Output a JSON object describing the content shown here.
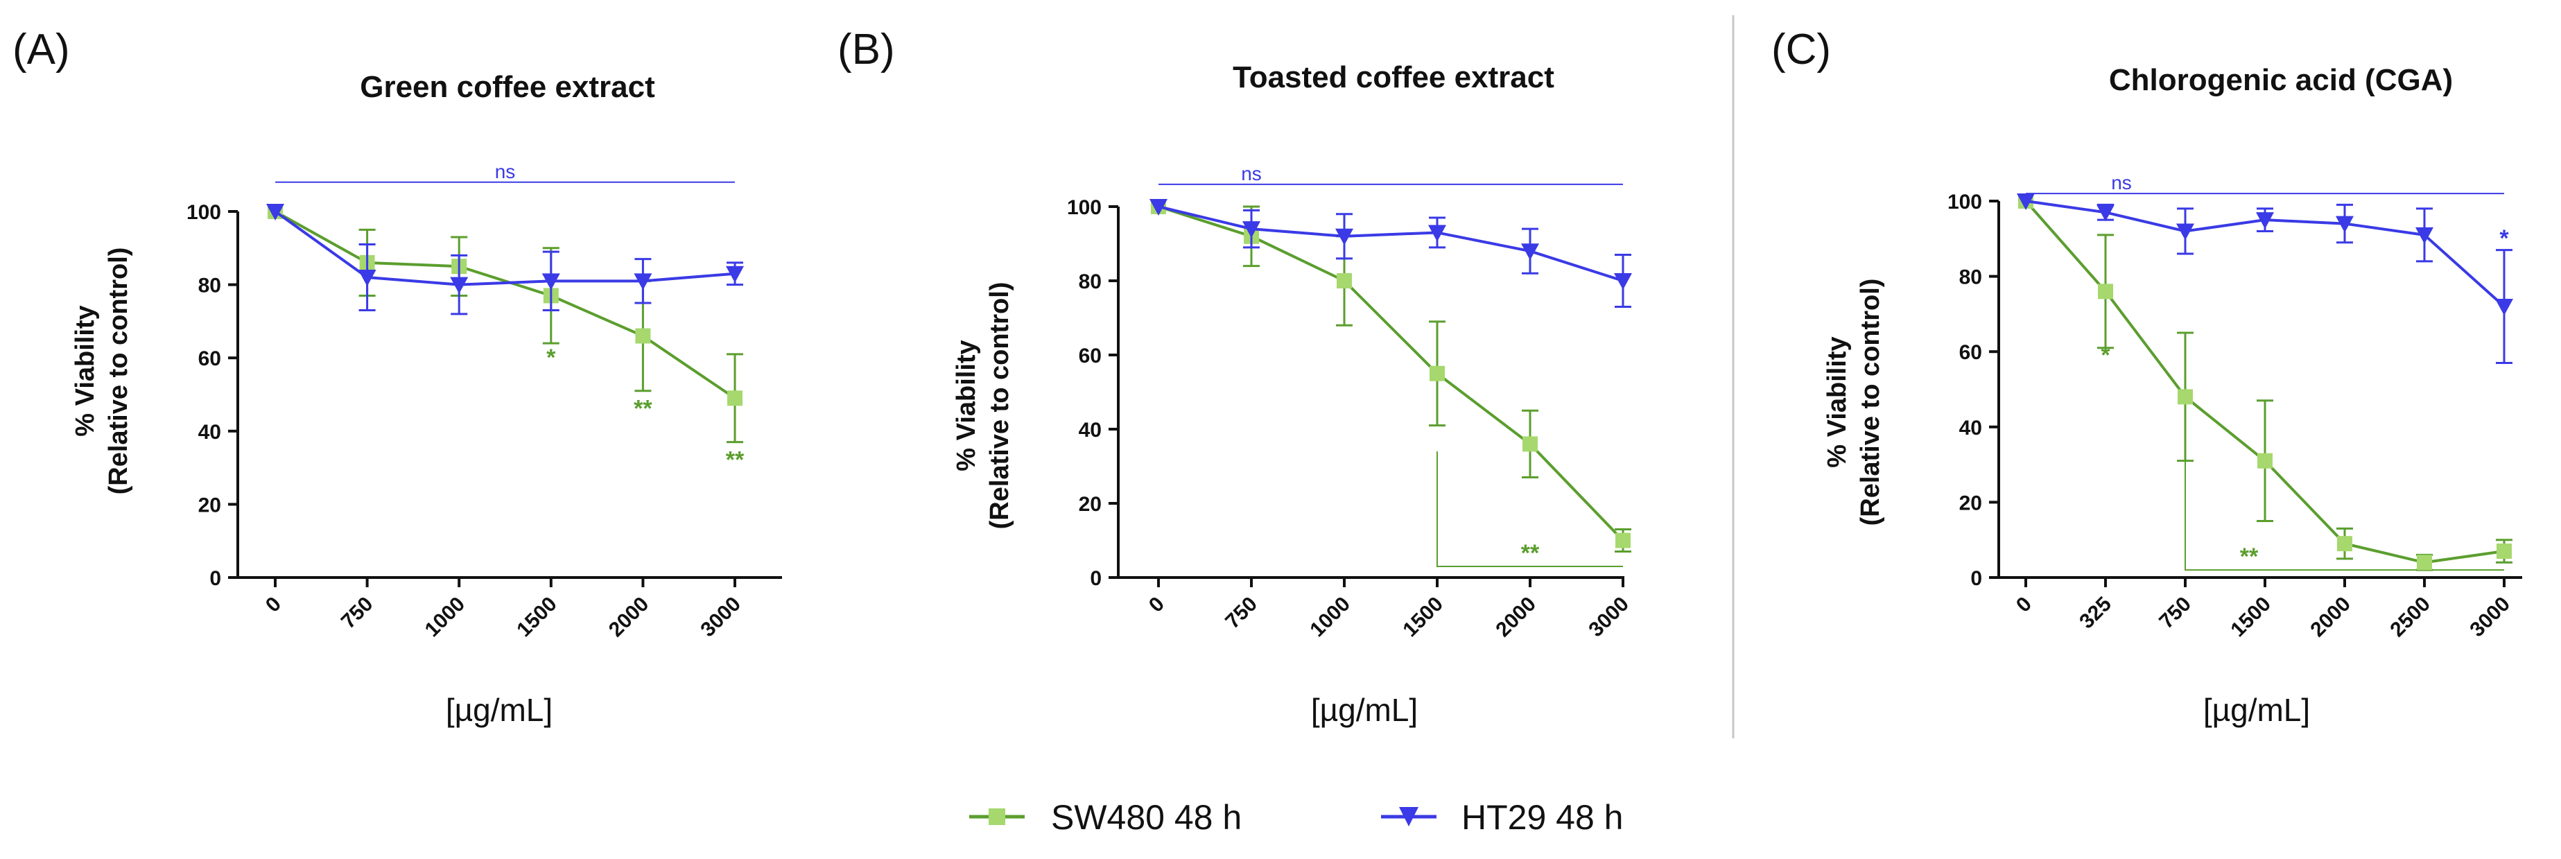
{
  "colors": {
    "sw480_line": "#5b9e2e",
    "sw480_marker": "#a6d86d",
    "ht29": "#3a3ae6",
    "axis": "#111111",
    "divider": "#c8c8c8"
  },
  "legend": [
    {
      "name": "SW480 48 h",
      "marker": "square",
      "color_key": "sw480"
    },
    {
      "name": "HT29 48 h",
      "marker": "triangle-down",
      "color_key": "ht29"
    }
  ],
  "chart_data": [
    {
      "type": "line",
      "panel": "(A)",
      "title": "Green coffee extract",
      "xlabel": "[µg/mL]",
      "ylabel": [
        "% Viability",
        "(Relative to control)"
      ],
      "categories": [
        "0",
        "750",
        "1000",
        "1500",
        "2000",
        "3000"
      ],
      "ylim": [
        0,
        100
      ],
      "yticks": [
        0,
        20,
        40,
        60,
        80,
        100
      ],
      "series": [
        {
          "name": "SW480 48 h",
          "values": [
            100,
            86,
            85,
            77,
            66,
            49
          ],
          "errors": [
            0,
            9,
            8,
            13,
            15,
            12
          ]
        },
        {
          "name": "HT29 48 h",
          "values": [
            100,
            82,
            80,
            81,
            81,
            83
          ],
          "errors": [
            0,
            9,
            8,
            8,
            6,
            3
          ]
        }
      ],
      "annotations": [
        {
          "type": "ns-line",
          "text": "ns",
          "y": 108,
          "from": 0,
          "to": 5,
          "color_key": "ht29"
        },
        {
          "type": "star",
          "text": "*",
          "index": 3,
          "y": 58,
          "color_key": "sw480"
        },
        {
          "type": "star",
          "text": "**",
          "index": 4,
          "y": 44,
          "color_key": "sw480"
        },
        {
          "type": "star",
          "text": "**",
          "index": 5,
          "y": 30,
          "color_key": "sw480"
        }
      ]
    },
    {
      "type": "line",
      "panel": "(B)",
      "title": "Toasted coffee extract",
      "xlabel": "[µg/mL]",
      "ylabel": [
        "% Viability",
        "(Relative to control)"
      ],
      "categories": [
        "0",
        "750",
        "1000",
        "1500",
        "2000",
        "3000"
      ],
      "ylim": [
        0,
        100
      ],
      "yticks": [
        0,
        20,
        40,
        60,
        80,
        100
      ],
      "series": [
        {
          "name": "SW480 48 h",
          "values": [
            100,
            92,
            80,
            55,
            36,
            10
          ],
          "errors": [
            0,
            8,
            12,
            14,
            9,
            3
          ]
        },
        {
          "name": "HT29 48 h",
          "values": [
            100,
            94,
            92,
            93,
            88,
            80
          ],
          "errors": [
            0,
            5,
            6,
            4,
            6,
            7
          ]
        }
      ],
      "annotations": [
        {
          "type": "ns-line",
          "text": "ns",
          "y": 106,
          "from": 0,
          "to": 5,
          "color_key": "ht29"
        },
        {
          "type": "bracket",
          "text": "**",
          "from": 3,
          "to": 5,
          "y": 3,
          "top": 34,
          "color_key": "sw480"
        }
      ]
    },
    {
      "type": "line",
      "panel": "(C)",
      "title": "Chlorogenic acid (CGA)",
      "xlabel": "[µg/mL]",
      "ylabel": [
        "% Viability",
        "(Relative to control)"
      ],
      "categories": [
        "0",
        "325",
        "750",
        "1500",
        "2000",
        "2500",
        "3000"
      ],
      "ylim": [
        0,
        100
      ],
      "yticks": [
        0,
        20,
        40,
        60,
        80,
        100
      ],
      "series": [
        {
          "name": "SW480 48 h",
          "values": [
            100,
            76,
            48,
            31,
            9,
            4,
            7
          ],
          "errors": [
            0,
            15,
            17,
            16,
            4,
            2,
            3
          ]
        },
        {
          "name": "HT29 48 h",
          "values": [
            100,
            97,
            92,
            95,
            94,
            91,
            72
          ],
          "errors": [
            0,
            2,
            6,
            3,
            5,
            7,
            15
          ]
        }
      ],
      "annotations": [
        {
          "type": "ns-line",
          "text": "ns",
          "y": 102,
          "from": 0,
          "to": 6,
          "color_key": "ht29"
        },
        {
          "type": "star",
          "text": "*",
          "index": 1,
          "y": 57,
          "color_key": "sw480"
        },
        {
          "type": "star",
          "text": "*",
          "index": 6,
          "y": 88,
          "color_key": "ht29"
        },
        {
          "type": "bracket",
          "text": "**",
          "from": 2,
          "to": 6,
          "y": 2,
          "top": 48,
          "color_key": "sw480"
        }
      ]
    }
  ]
}
